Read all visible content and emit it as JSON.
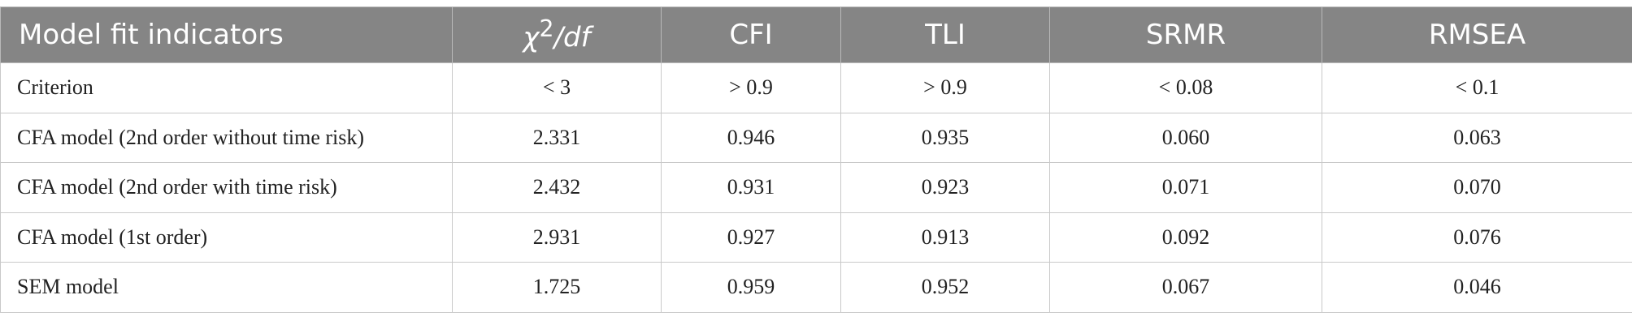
{
  "table": {
    "headers": {
      "col0": "Model fit indicators",
      "col1_symbol": "χ",
      "col1_sup": "2",
      "col1_rest": "/df",
      "col2": "CFI",
      "col3": "TLI",
      "col4": "SRMR",
      "col5": "RMSEA"
    },
    "rows": [
      {
        "label": "Criterion",
        "chi": "< 3",
        "cfi": "> 0.9",
        "tli": "> 0.9",
        "srmr": "< 0.08",
        "rmsea": "< 0.1"
      },
      {
        "label": "CFA model (2nd order without time risk)",
        "chi": "2.331",
        "cfi": "0.946",
        "tli": "0.935",
        "srmr": "0.060",
        "rmsea": "0.063"
      },
      {
        "label": "CFA model (2nd order with time risk)",
        "chi": "2.432",
        "cfi": "0.931",
        "tli": "0.923",
        "srmr": "0.071",
        "rmsea": "0.070"
      },
      {
        "label": "CFA model (1st order)",
        "chi": "2.931",
        "cfi": "0.927",
        "tli": "0.913",
        "srmr": "0.092",
        "rmsea": "0.076"
      },
      {
        "label": "SEM model",
        "chi": "1.725",
        "cfi": "0.959",
        "tli": "0.952",
        "srmr": "0.067",
        "rmsea": "0.046"
      }
    ]
  },
  "colors": {
    "header_bg": "#858585",
    "header_text": "#ffffff",
    "border": "#c9c9c9"
  }
}
